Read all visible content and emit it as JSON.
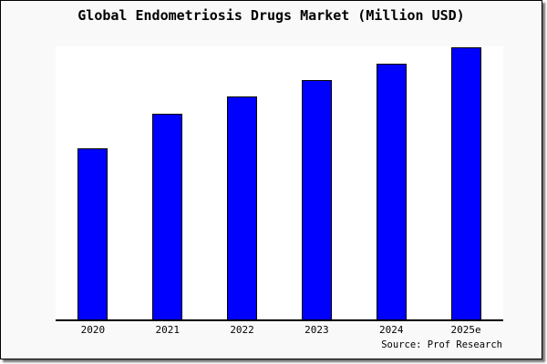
{
  "title": "Global Endometriosis Drugs Market (Million USD)",
  "source": "Source: Prof Research",
  "colors": {
    "bar_fill": "#0000ff",
    "bar_border": "#000000",
    "canvas_background": "#f9f9f9",
    "plot_background": "#ffffff",
    "axis": "#000000",
    "text": "#000000"
  },
  "chart_data": {
    "type": "bar",
    "title": "Global Endometriosis Drugs Market (Million USD)",
    "categories": [
      "2020",
      "2021",
      "2022",
      "2023",
      "2024",
      "2025e"
    ],
    "values": [
      188,
      226,
      245,
      263,
      281,
      299
    ],
    "xlabel": "",
    "ylabel": "",
    "ylim": [
      0,
      300
    ],
    "grid": false,
    "legend": false,
    "note": "No y-axis ticks or value labels are shown in the image; values are bar heights relative to the 300-unit-tall plot area."
  }
}
